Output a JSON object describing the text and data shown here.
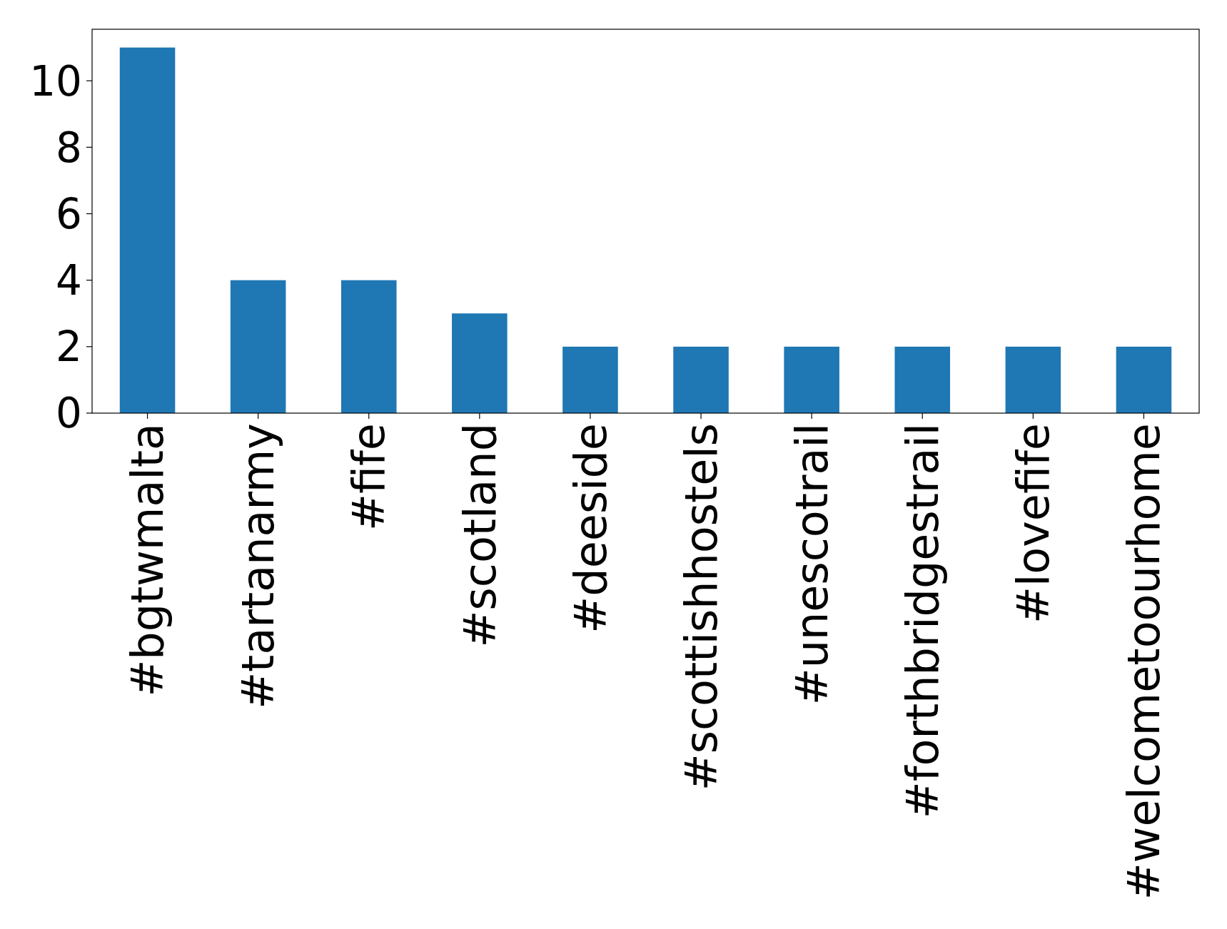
{
  "chart_data": {
    "type": "bar",
    "categories": [
      "#bgtwmalta",
      "#tartanarmy",
      "#fife",
      "#scotland",
      "#deeside",
      "#scottishhostels",
      "#unescotrail",
      "#forthbridgestrail",
      "#lovefife",
      "#welcometoourhome"
    ],
    "values": [
      11,
      4,
      4,
      3,
      2,
      2,
      2,
      2,
      2,
      2
    ],
    "color": "#1f77b4",
    "ylim": [
      0,
      11.55
    ],
    "yticks": [
      0,
      2,
      4,
      6,
      8,
      10
    ],
    "grid": false
  }
}
